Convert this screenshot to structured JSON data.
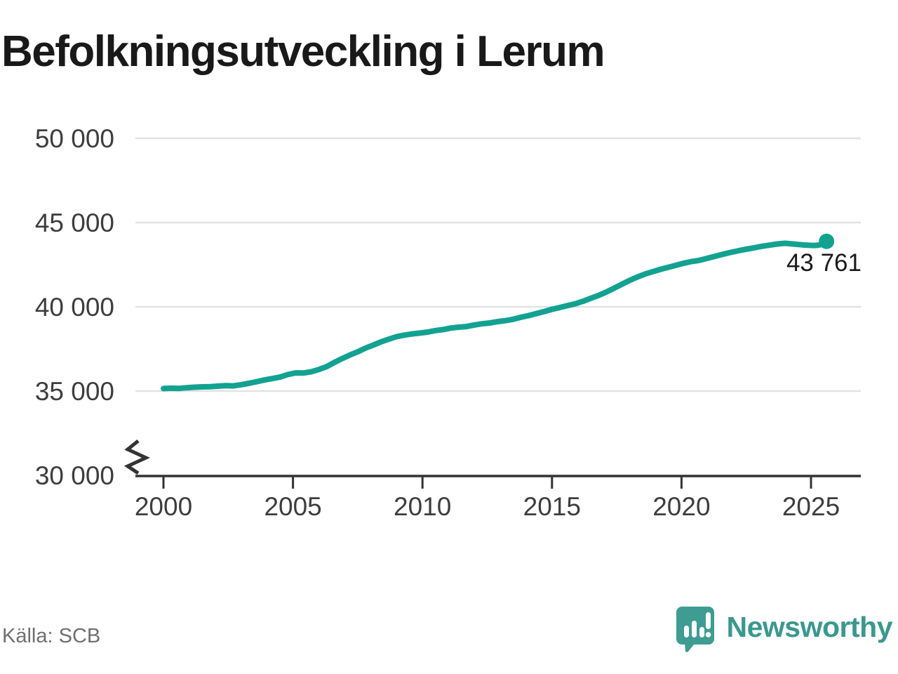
{
  "title": "Befolkningsutveckling i Lerum",
  "source": "Källa: SCB",
  "branding": {
    "logo_text": "Newsworthy"
  },
  "colors": {
    "line": "#13a291",
    "grid": "#e2e2e2",
    "axis": "#333333",
    "tick_label": "#3d3d3d",
    "title_text": "#191919",
    "source_text": "#6f6f6f",
    "brand_teal": "#3f9c92",
    "annotation_text": "#1a1a1a"
  },
  "chart_data": {
    "type": "line",
    "title": "Befolkningsutveckling i Lerum",
    "xlabel": "",
    "ylabel": "",
    "grid": "horizontal",
    "legend": "none",
    "y_axis_break": true,
    "xlim": [
      1998.9,
      2026.9
    ],
    "ylim": [
      30000,
      50000
    ],
    "x_ticks": [
      {
        "value": 2000,
        "label": "2000"
      },
      {
        "value": 2005,
        "label": "2005"
      },
      {
        "value": 2010,
        "label": "2010"
      },
      {
        "value": 2015,
        "label": "2015"
      },
      {
        "value": 2020,
        "label": "2020"
      },
      {
        "value": 2025,
        "label": "2025"
      }
    ],
    "y_ticks": [
      {
        "value": 50000,
        "label": "50 000"
      },
      {
        "value": 45000,
        "label": "45 000"
      },
      {
        "value": 40000,
        "label": "40 000"
      },
      {
        "value": 35000,
        "label": "35 000"
      },
      {
        "value": 30000,
        "label": "30 000"
      }
    ],
    "series": [
      {
        "points": [
          [
            2000.0,
            35150
          ],
          [
            2000.3,
            35170
          ],
          [
            2000.6,
            35160
          ],
          [
            2000.9,
            35200
          ],
          [
            2001.2,
            35230
          ],
          [
            2001.5,
            35250
          ],
          [
            2001.8,
            35260
          ],
          [
            2002.1,
            35290
          ],
          [
            2002.4,
            35320
          ],
          [
            2002.7,
            35310
          ],
          [
            2003.0,
            35380
          ],
          [
            2003.3,
            35460
          ],
          [
            2003.6,
            35560
          ],
          [
            2003.9,
            35660
          ],
          [
            2004.2,
            35740
          ],
          [
            2004.5,
            35830
          ],
          [
            2004.8,
            35980
          ],
          [
            2005.1,
            36080
          ],
          [
            2005.4,
            36070
          ],
          [
            2005.7,
            36140
          ],
          [
            2006.0,
            36280
          ],
          [
            2006.3,
            36450
          ],
          [
            2006.6,
            36700
          ],
          [
            2006.9,
            36930
          ],
          [
            2007.2,
            37140
          ],
          [
            2007.5,
            37330
          ],
          [
            2007.8,
            37550
          ],
          [
            2008.1,
            37730
          ],
          [
            2008.4,
            37920
          ],
          [
            2008.7,
            38080
          ],
          [
            2009.0,
            38230
          ],
          [
            2009.3,
            38320
          ],
          [
            2009.6,
            38390
          ],
          [
            2009.9,
            38440
          ],
          [
            2010.2,
            38500
          ],
          [
            2010.5,
            38590
          ],
          [
            2010.8,
            38650
          ],
          [
            2011.1,
            38740
          ],
          [
            2011.4,
            38790
          ],
          [
            2011.7,
            38830
          ],
          [
            2012.0,
            38920
          ],
          [
            2012.3,
            38990
          ],
          [
            2012.6,
            39040
          ],
          [
            2012.9,
            39120
          ],
          [
            2013.2,
            39180
          ],
          [
            2013.5,
            39260
          ],
          [
            2013.8,
            39380
          ],
          [
            2014.1,
            39480
          ],
          [
            2014.4,
            39600
          ],
          [
            2014.7,
            39720
          ],
          [
            2015.0,
            39850
          ],
          [
            2015.3,
            39960
          ],
          [
            2015.6,
            40070
          ],
          [
            2015.9,
            40180
          ],
          [
            2016.2,
            40330
          ],
          [
            2016.5,
            40510
          ],
          [
            2016.8,
            40680
          ],
          [
            2017.1,
            40880
          ],
          [
            2017.4,
            41110
          ],
          [
            2017.7,
            41340
          ],
          [
            2018.0,
            41570
          ],
          [
            2018.3,
            41770
          ],
          [
            2018.6,
            41950
          ],
          [
            2018.9,
            42090
          ],
          [
            2019.2,
            42230
          ],
          [
            2019.5,
            42350
          ],
          [
            2019.8,
            42470
          ],
          [
            2020.1,
            42590
          ],
          [
            2020.4,
            42690
          ],
          [
            2020.7,
            42760
          ],
          [
            2021.0,
            42880
          ],
          [
            2021.3,
            43000
          ],
          [
            2021.6,
            43120
          ],
          [
            2021.9,
            43230
          ],
          [
            2022.2,
            43330
          ],
          [
            2022.5,
            43420
          ],
          [
            2022.8,
            43500
          ],
          [
            2023.1,
            43590
          ],
          [
            2023.4,
            43660
          ],
          [
            2023.7,
            43730
          ],
          [
            2024.0,
            43770
          ],
          [
            2024.25,
            43735
          ],
          [
            2024.5,
            43700
          ],
          [
            2024.75,
            43665
          ],
          [
            2025.0,
            43645
          ],
          [
            2025.2,
            43640
          ],
          [
            2025.4,
            43690
          ],
          [
            2025.6,
            43761
          ]
        ]
      }
    ],
    "last_point": {
      "x": 2025.6,
      "y": 43761,
      "label": "43 761"
    }
  }
}
